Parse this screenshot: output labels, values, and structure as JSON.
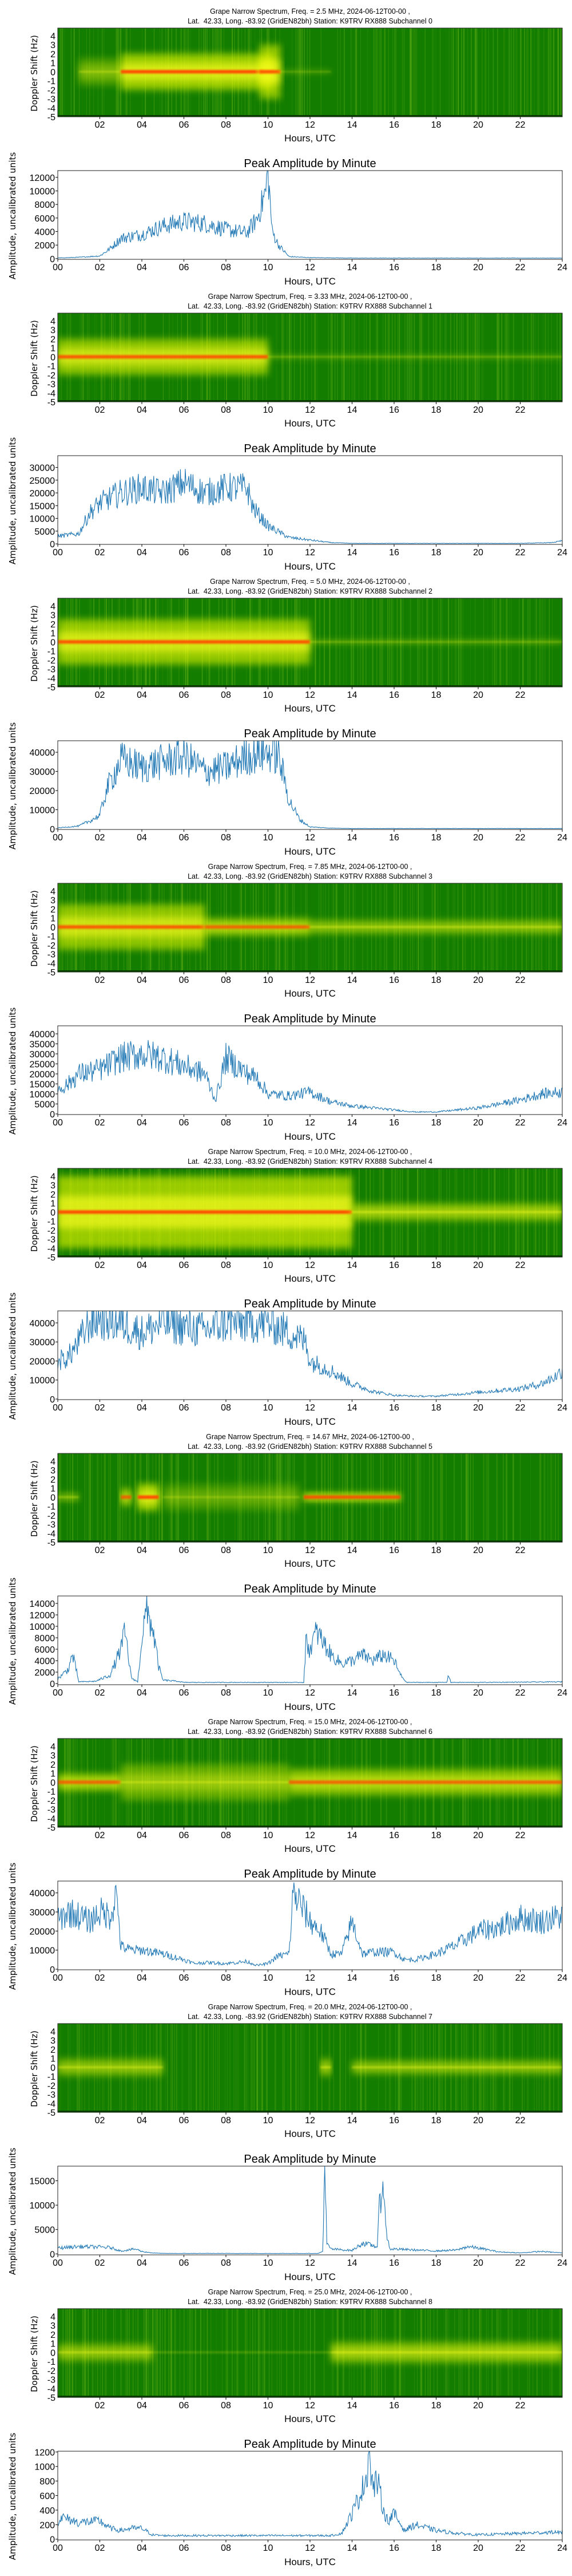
{
  "common": {
    "spectrum_ylabel": "Doppler Shift (Hz)",
    "xlabel": "Hours, UTC",
    "amp_title": "Peak Amplitude by Minute",
    "amp_ylabel": "Amplitude, uncalibrated units",
    "spec_xticks": [
      "02",
      "04",
      "06",
      "08",
      "10",
      "12",
      "14",
      "16",
      "18",
      "20",
      "22"
    ],
    "amp_xticks": [
      "00",
      "02",
      "04",
      "06",
      "08",
      "10",
      "12",
      "14",
      "16",
      "18",
      "20",
      "22",
      "24"
    ],
    "spec_yticks": [
      "4",
      "3",
      "2",
      "1",
      "0",
      "-1",
      "-2",
      "-3",
      "-4",
      "-5"
    ]
  },
  "colors": {
    "line": "#1f77b4",
    "spec_base": "#137d00",
    "spec_stripe": "#5fae14",
    "spec_glow": "#d8f000",
    "spec_bright": "#ffff20",
    "spec_core": "#ff4a00"
  },
  "chart_data": [
    {
      "type": "heatmap",
      "title_line1": "Grape Narrow Spectrum, Freq. = 2.5 MHz, 2024-06-12T00-00 ,",
      "title_line2": "Lat.  42.33, Long. -83.92 (GridEN82bh) Station: K9TRV RX888 Subchannel 0",
      "xlim": [
        0,
        24
      ],
      "ylim": [
        -5,
        4.85
      ],
      "activity": [
        [
          1,
          3,
          0.4,
          1.5
        ],
        [
          3,
          10.3,
          0.9,
          2
        ],
        [
          9.6,
          10.6,
          0.8,
          3
        ],
        [
          10.5,
          13,
          0.2,
          0.3
        ]
      ]
    },
    {
      "type": "line",
      "title": "Peak Amplitude by Minute",
      "ylim": [
        -100,
        13000
      ],
      "yticks": [
        "0",
        "2000",
        "4000",
        "6000",
        "8000",
        "10000",
        "12000"
      ],
      "ytick_values": [
        0,
        2000,
        4000,
        6000,
        8000,
        10000,
        12000
      ],
      "x": [
        0,
        1,
        2,
        2.5,
        3,
        4,
        5,
        6,
        7,
        8,
        9,
        9.5,
        9.9,
        10,
        10.2,
        10.5,
        11,
        12,
        14,
        24
      ],
      "y": [
        100,
        200,
        400,
        1500,
        3000,
        3600,
        4800,
        5500,
        5200,
        4300,
        3800,
        6000,
        10000,
        13000,
        4000,
        2000,
        300,
        150,
        80,
        80
      ]
    },
    {
      "type": "heatmap",
      "title_line1": "Grape Narrow Spectrum, Freq. = 3.33 MHz, 2024-06-12T00-00 ,",
      "title_line2": "Lat.  42.33, Long. -83.92 (GridEN82bh) Station: K9TRV RX888 Subchannel 1",
      "xlim": [
        0,
        24
      ],
      "ylim": [
        -5,
        4.85
      ],
      "activity": [
        [
          0,
          10,
          0.8,
          2
        ],
        [
          10,
          24,
          0.25,
          0.3
        ]
      ]
    },
    {
      "type": "line",
      "title": "Peak Amplitude by Minute",
      "ylim": [
        -200,
        34600
      ],
      "yticks": [
        "0",
        "5000",
        "10000",
        "15000",
        "20000",
        "25000",
        "30000"
      ],
      "ytick_values": [
        0,
        5000,
        10000,
        15000,
        20000,
        25000,
        30000
      ],
      "x": [
        0,
        1,
        1.5,
        2,
        3,
        4,
        5,
        6,
        7,
        8,
        9,
        9.3,
        10,
        11,
        12,
        13,
        14,
        22,
        23.5,
        24
      ],
      "y": [
        3000,
        4000,
        12000,
        16000,
        20000,
        22000,
        20000,
        24000,
        20000,
        22000,
        22000,
        14000,
        7000,
        2500,
        1500,
        500,
        200,
        200,
        500,
        1200
      ]
    },
    {
      "type": "heatmap",
      "title_line1": "Grape Narrow Spectrum, Freq. = 5.0 MHz, 2024-06-12T00-00 ,",
      "title_line2": "Lat.  42.33, Long. -83.92 (GridEN82bh) Station: K9TRV RX888 Subchannel 2",
      "xlim": [
        0,
        24
      ],
      "ylim": [
        -5,
        4.85
      ],
      "activity": [
        [
          0,
          12,
          0.85,
          2.5
        ],
        [
          12,
          24,
          0.3,
          0.3
        ]
      ]
    },
    {
      "type": "line",
      "title": "Peak Amplitude by Minute",
      "ylim": [
        -300,
        46000
      ],
      "yticks": [
        "0",
        "10000",
        "20000",
        "30000",
        "40000"
      ],
      "ytick_values": [
        0,
        10000,
        20000,
        30000,
        40000
      ],
      "x": [
        0,
        1,
        1.5,
        2,
        2.3,
        3,
        4,
        5,
        6,
        7,
        8,
        9,
        10,
        10.5,
        10.8,
        11,
        11.5,
        12,
        13,
        14,
        24
      ],
      "y": [
        500,
        1500,
        4000,
        7000,
        20000,
        36000,
        32000,
        35000,
        38000,
        30000,
        32000,
        38000,
        40000,
        38000,
        25000,
        15000,
        5000,
        1000,
        400,
        200,
        200
      ]
    },
    {
      "type": "heatmap",
      "title_line1": "Grape Narrow Spectrum, Freq. = 7.85 MHz, 2024-06-12T00-00 ,",
      "title_line2": "Lat.  42.33, Long. -83.92 (GridEN82bh) Station: K9TRV RX888 Subchannel 3",
      "xlim": [
        0,
        24
      ],
      "ylim": [
        -5,
        4.85
      ],
      "activity": [
        [
          0,
          7,
          0.8,
          2.5
        ],
        [
          7,
          12,
          0.7,
          1
        ],
        [
          12,
          24,
          0.5,
          0.8
        ]
      ]
    },
    {
      "type": "line",
      "title": "Peak Amplitude by Minute",
      "ylim": [
        -300,
        44000
      ],
      "yticks": [
        "0",
        "5000",
        "10000",
        "15000",
        "20000",
        "25000",
        "30000",
        "35000",
        "40000"
      ],
      "ytick_values": [
        0,
        5000,
        10000,
        15000,
        20000,
        25000,
        30000,
        35000,
        40000
      ],
      "x": [
        0,
        0.5,
        1,
        2,
        3,
        4,
        5,
        6,
        7,
        7.5,
        8,
        9,
        9.5,
        10,
        11,
        12,
        13,
        14,
        15,
        16,
        17,
        18,
        19,
        20,
        21,
        22,
        23,
        24
      ],
      "y": [
        12000,
        15000,
        20000,
        22000,
        28000,
        30000,
        28000,
        24000,
        20000,
        7000,
        28000,
        20000,
        18000,
        10000,
        9000,
        11000,
        6000,
        4000,
        3000,
        2000,
        1000,
        1000,
        2000,
        3000,
        5000,
        7000,
        10000,
        11000
      ]
    },
    {
      "type": "heatmap",
      "title_line1": "Grape Narrow Spectrum, Freq. = 10.0 MHz, 2024-06-12T00-00 ,",
      "title_line2": "Lat.  42.33, Long. -83.92 (GridEN82bh) Station: K9TRV RX888 Subchannel 4",
      "xlim": [
        0,
        24
      ],
      "ylim": [
        -5,
        4.85
      ],
      "activity": [
        [
          0,
          14,
          0.9,
          4
        ],
        [
          14,
          24,
          0.6,
          1
        ]
      ]
    },
    {
      "type": "line",
      "title": "Peak Amplitude by Minute",
      "ylim": [
        -300,
        46300
      ],
      "yticks": [
        "0",
        "10000",
        "20000",
        "30000",
        "40000"
      ],
      "ytick_values": [
        0,
        10000,
        20000,
        30000,
        40000
      ],
      "x": [
        0,
        0.5,
        1,
        1.5,
        2,
        3,
        4,
        5,
        6,
        7,
        8,
        9,
        10,
        11,
        11.8,
        12,
        13,
        14,
        15,
        16,
        17,
        18,
        19,
        20,
        21,
        22,
        23,
        23.7,
        24
      ],
      "y": [
        20000,
        22000,
        30000,
        40000,
        42000,
        40000,
        35000,
        40000,
        38000,
        36000,
        40000,
        40000,
        40000,
        35000,
        30000,
        20000,
        15000,
        8000,
        4000,
        2000,
        1500,
        1500,
        2500,
        3500,
        4500,
        5500,
        8000,
        12000,
        15000
      ]
    },
    {
      "type": "heatmap",
      "title_line1": "Grape Narrow Spectrum, Freq. = 14.67 MHz, 2024-06-12T00-00 ,",
      "title_line2": "Lat.  42.33, Long. -83.92 (GridEN82bh) Station: K9TRV RX888 Subchannel 5",
      "xlim": [
        0,
        24
      ],
      "ylim": [
        -5,
        4.85
      ],
      "activity": [
        [
          0,
          1,
          0.4,
          0.5
        ],
        [
          3,
          3.5,
          0.7,
          1
        ],
        [
          3.8,
          4.8,
          0.9,
          1.5
        ],
        [
          5,
          11.5,
          0.3,
          1.5
        ],
        [
          11.7,
          16.3,
          0.8,
          0.5
        ]
      ]
    },
    {
      "type": "line",
      "title": "Peak Amplitude by Minute",
      "ylim": [
        -200,
        15300
      ],
      "yticks": [
        "0",
        "2000",
        "4000",
        "6000",
        "8000",
        "10000",
        "12000",
        "14000"
      ],
      "ytick_values": [
        0,
        2000,
        4000,
        6000,
        8000,
        10000,
        12000,
        14000
      ],
      "x": [
        0,
        0.5,
        0.7,
        0.9,
        1,
        1.8,
        2.5,
        3,
        3.2,
        3.5,
        3.8,
        4,
        4.2,
        4.5,
        4.8,
        5,
        5.7,
        6,
        11.7,
        11.8,
        12,
        12.3,
        12.5,
        13,
        13.5,
        14,
        14.5,
        15,
        15.5,
        16,
        16.3,
        16.6,
        18.5,
        18.6,
        18.7,
        20,
        24
      ],
      "y": [
        800,
        2500,
        5000,
        2000,
        300,
        400,
        1500,
        6000,
        9000,
        1000,
        300,
        8000,
        12500,
        10000,
        3000,
        600,
        400,
        200,
        200,
        7000,
        6000,
        9000,
        8000,
        5000,
        3500,
        4000,
        5000,
        4000,
        5000,
        4000,
        1500,
        200,
        200,
        1500,
        200,
        200,
        300
      ]
    },
    {
      "type": "heatmap",
      "title_line1": "Grape Narrow Spectrum, Freq. = 15.0 MHz, 2024-06-12T00-00 ,",
      "title_line2": "Lat.  42.33, Long. -83.92 (GridEN82bh) Station: K9TRV RX888 Subchannel 6",
      "xlim": [
        0,
        24
      ],
      "ylim": [
        -5,
        4.85
      ],
      "activity": [
        [
          0,
          3,
          0.7,
          1
        ],
        [
          3,
          11,
          0.5,
          2
        ],
        [
          11,
          24,
          0.7,
          1.5
        ]
      ]
    },
    {
      "type": "line",
      "title": "Peak Amplitude by Minute",
      "ylim": [
        -300,
        46200
      ],
      "yticks": [
        "0",
        "10000",
        "20000",
        "30000",
        "40000"
      ],
      "ytick_values": [
        0,
        10000,
        20000,
        30000,
        40000
      ],
      "x": [
        0,
        0.5,
        1,
        1.5,
        2,
        2.5,
        2.8,
        3,
        3.5,
        4,
        5,
        6,
        6.5,
        7,
        8,
        9,
        9.5,
        10,
        10.5,
        11,
        11.2,
        11.5,
        12,
        12.5,
        13,
        13.5,
        14,
        14.5,
        15,
        16,
        16.5,
        17,
        18,
        19,
        20,
        21,
        22,
        23,
        24
      ],
      "y": [
        25000,
        30000,
        28000,
        25000,
        30000,
        28000,
        40000,
        12000,
        10000,
        10000,
        8000,
        5000,
        3000,
        3500,
        3000,
        4000,
        2000,
        3000,
        7000,
        8000,
        40000,
        35000,
        25000,
        20000,
        8000,
        8000,
        25000,
        8000,
        9000,
        9000,
        5000,
        5000,
        8000,
        13000,
        20000,
        22000,
        27000,
        25000,
        28000
      ]
    },
    {
      "type": "heatmap",
      "title_line1": "Grape Narrow Spectrum, Freq. = 20.0 MHz, 2024-06-12T00-00 ,",
      "title_line2": "Lat.  42.33, Long. -83.92 (GridEN82bh) Station: K9TRV RX888 Subchannel 7",
      "xlim": [
        0,
        24
      ],
      "ylim": [
        -5,
        4.85
      ],
      "activity": [
        [
          0,
          5,
          0.5,
          1
        ],
        [
          12.5,
          13,
          0.6,
          1
        ],
        [
          14,
          24,
          0.5,
          0.8
        ]
      ]
    },
    {
      "type": "line",
      "title": "Peak Amplitude by Minute",
      "ylim": [
        -200,
        18000
      ],
      "yticks": [
        "0",
        "5000",
        "10000",
        "15000"
      ],
      "ytick_values": [
        0,
        5000,
        10000,
        15000
      ],
      "x": [
        0,
        1,
        2,
        2.5,
        3,
        3.7,
        4,
        4.5,
        5,
        12.4,
        12.6,
        12.7,
        12.8,
        13,
        14,
        14.5,
        15.2,
        15.3,
        15.5,
        15.6,
        15.8,
        16,
        18,
        19,
        19.5,
        20,
        21,
        22,
        23,
        24
      ],
      "y": [
        1200,
        1500,
        1400,
        1300,
        600,
        1000,
        500,
        200,
        100,
        100,
        500,
        18000,
        2000,
        1000,
        700,
        2200,
        1500,
        9500,
        15500,
        5000,
        1000,
        1000,
        600,
        800,
        1500,
        1200,
        400,
        200,
        500,
        200
      ]
    },
    {
      "type": "heatmap",
      "title_line1": "Grape Narrow Spectrum, Freq. = 25.0 MHz, 2024-06-12T00-00 ,",
      "title_line2": "Lat.  42.33, Long. -83.92 (GridEN82bh) Station: K9TRV RX888 Subchannel 8",
      "xlim": [
        0,
        24
      ],
      "ylim": [
        -5,
        4.85
      ],
      "activity": [
        [
          0,
          4.5,
          0.5,
          1
        ],
        [
          4.5,
          13,
          0.2,
          0.1
        ],
        [
          13,
          24,
          0.6,
          1.2
        ]
      ]
    },
    {
      "type": "line",
      "title": "Peak Amplitude by Minute",
      "ylim": [
        -10,
        1210
      ],
      "yticks": [
        "0",
        "200",
        "400",
        "600",
        "800",
        "1000",
        "1200"
      ],
      "ytick_values": [
        0,
        200,
        400,
        600,
        800,
        1000,
        1200
      ],
      "x": [
        0,
        0.2,
        1,
        2,
        2.5,
        3,
        3.5,
        4,
        4.5,
        5,
        13,
        13.5,
        14,
        14.5,
        14.7,
        14.8,
        15,
        15.2,
        15.5,
        15.7,
        16,
        16.5,
        17,
        18,
        19,
        20,
        22,
        24
      ],
      "y": [
        250,
        300,
        230,
        250,
        150,
        120,
        150,
        150,
        60,
        50,
        50,
        80,
        350,
        700,
        900,
        1200,
        700,
        800,
        400,
        250,
        350,
        120,
        200,
        120,
        80,
        60,
        80,
        100
      ]
    }
  ]
}
